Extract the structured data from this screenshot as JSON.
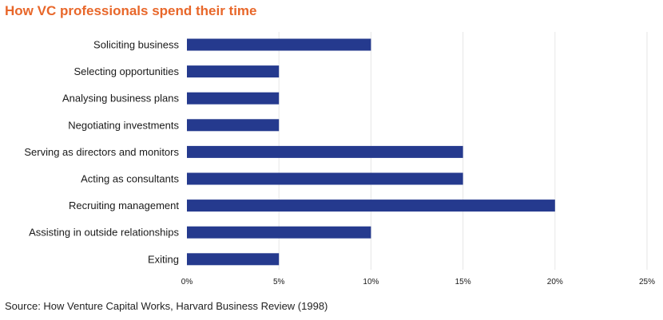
{
  "chart_data": {
    "type": "bar",
    "orientation": "horizontal",
    "title": "How VC professionals spend their time",
    "source": "Source: How Venture Capital Works, Harvard Business Review (1998)",
    "categories": [
      "Soliciting business",
      "Selecting opportunities",
      "Analysing business plans",
      "Negotiating investments",
      "Serving as directors and monitors",
      "Acting as consultants",
      "Recruiting management",
      "Assisting in outside relationships",
      "Exiting"
    ],
    "values": [
      10,
      5,
      5,
      5,
      15,
      15,
      20,
      10,
      5
    ],
    "xlim": [
      0,
      25
    ],
    "xticks": [
      0,
      5,
      10,
      15,
      20,
      25
    ],
    "xtick_labels": [
      "0%",
      "5%",
      "10%",
      "15%",
      "20%",
      "25%"
    ],
    "xlabel": "",
    "ylabel": "",
    "grid": true,
    "legend": "none",
    "bar_color": "#253a8e",
    "title_color": "#e8672a",
    "grid_color": "#e6e6e6"
  }
}
